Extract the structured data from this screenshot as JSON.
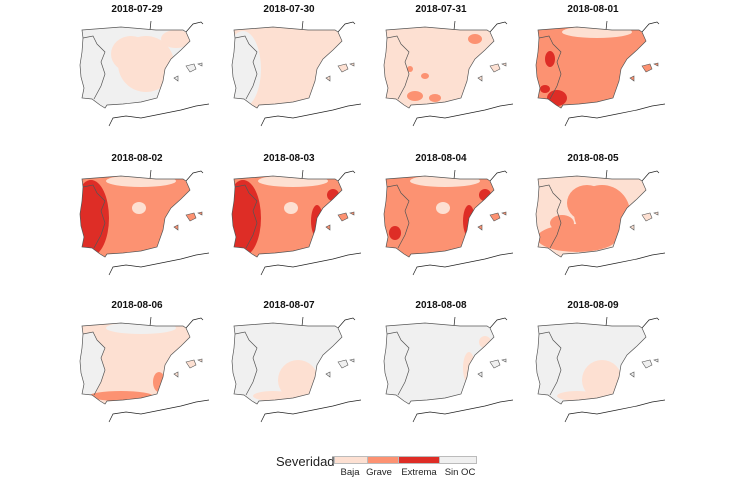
{
  "colors": {
    "Baja": "#fde0d2",
    "Grave": "#fc9272",
    "Extrema": "#de2d26",
    "Sin OC": "#f0f0f0"
  },
  "panels": [
    {
      "date": "2018-07-29",
      "base": "Sin OC",
      "patches": [
        {
          "region": "east-interior",
          "level": "Baja"
        },
        {
          "region": "northeast",
          "level": "Baja"
        }
      ]
    },
    {
      "date": "2018-07-30",
      "base": "Baja",
      "patches": [
        {
          "region": "west",
          "level": "Sin OC"
        },
        {
          "region": "portugal",
          "level": "Sin OC"
        }
      ]
    },
    {
      "date": "2018-07-31",
      "base": "Baja",
      "patches": [
        {
          "region": "south-spots",
          "level": "Grave"
        },
        {
          "region": "northeast-spot",
          "level": "Grave"
        }
      ]
    },
    {
      "date": "2018-08-01",
      "base": "Grave",
      "patches": [
        {
          "region": "north-strip",
          "level": "Baja"
        },
        {
          "region": "southwest",
          "level": "Extrema"
        },
        {
          "region": "portugal-center",
          "level": "Extrema"
        }
      ]
    },
    {
      "date": "2018-08-02",
      "base": "Grave",
      "patches": [
        {
          "region": "west",
          "level": "Extrema"
        },
        {
          "region": "portugal",
          "level": "Extrema"
        },
        {
          "region": "north-strip",
          "level": "Baja"
        },
        {
          "region": "center-spot",
          "level": "Baja"
        }
      ]
    },
    {
      "date": "2018-08-03",
      "base": "Grave",
      "patches": [
        {
          "region": "west",
          "level": "Extrema"
        },
        {
          "region": "portugal",
          "level": "Extrema"
        },
        {
          "region": "east-coast",
          "level": "Extrema"
        },
        {
          "region": "north-strip",
          "level": "Baja"
        },
        {
          "region": "center-spot",
          "level": "Baja"
        }
      ]
    },
    {
      "date": "2018-08-04",
      "base": "Grave",
      "patches": [
        {
          "region": "east-coast",
          "level": "Extrema"
        },
        {
          "region": "southwest-spot",
          "level": "Extrema"
        },
        {
          "region": "center-spot",
          "level": "Baja"
        },
        {
          "region": "north-strip",
          "level": "Baja"
        }
      ]
    },
    {
      "date": "2018-08-05",
      "base": "Baja",
      "patches": [
        {
          "region": "south",
          "level": "Grave"
        },
        {
          "region": "east-interior",
          "level": "Grave"
        }
      ]
    },
    {
      "date": "2018-08-06",
      "base": "Baja",
      "patches": [
        {
          "region": "portugal",
          "level": "Sin OC"
        },
        {
          "region": "south-coast",
          "level": "Grave"
        },
        {
          "region": "north-strip",
          "level": "Sin OC"
        }
      ]
    },
    {
      "date": "2018-08-07",
      "base": "Sin OC",
      "patches": [
        {
          "region": "southeast",
          "level": "Baja"
        }
      ]
    },
    {
      "date": "2018-08-08",
      "base": "Sin OC",
      "patches": [
        {
          "region": "east-coast",
          "level": "Baja"
        }
      ]
    },
    {
      "date": "2018-08-09",
      "base": "Sin OC",
      "patches": [
        {
          "region": "southeast",
          "level": "Baja"
        }
      ]
    }
  ],
  "legend": {
    "title": "Severidad",
    "items": [
      "Baja",
      "Grave",
      "Extrema",
      "Sin OC"
    ]
  }
}
